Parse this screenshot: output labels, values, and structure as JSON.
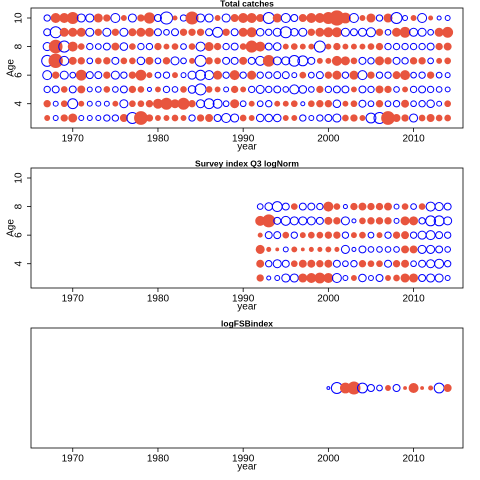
{
  "chart_data": [
    {
      "type": "bubble",
      "title": "Total catches",
      "xlabel": "year",
      "ylabel": "Age",
      "x": [
        1967,
        1968,
        1969,
        1970,
        1971,
        1972,
        1973,
        1974,
        1975,
        1976,
        1977,
        1978,
        1979,
        1980,
        1981,
        1982,
        1983,
        1984,
        1985,
        1986,
        1987,
        1988,
        1989,
        1990,
        1991,
        1992,
        1993,
        1994,
        1995,
        1996,
        1997,
        1998,
        1999,
        2000,
        2001,
        2002,
        2003,
        2004,
        2005,
        2006,
        2007,
        2008,
        2009,
        2010,
        2011,
        2012,
        2013,
        2014
      ],
      "y": [
        10,
        9,
        8,
        7,
        6,
        5,
        4,
        3
      ],
      "values": [
        [
          -0.5,
          1,
          1,
          1.5,
          -0.8,
          -0.8,
          0.8,
          0.5,
          -1,
          0.3,
          -0.8,
          0.5,
          1.3,
          -0.6,
          -1.8,
          0.2,
          -0.5,
          1.8,
          -0.8,
          -0.8,
          0.3,
          -0.8,
          0.6,
          1,
          1,
          0.6,
          -1.5,
          0.8,
          -1,
          -0.6,
          0.6,
          1,
          1,
          1.5,
          2.5,
          1.2,
          -1,
          0.3,
          0.8,
          -0.5,
          0.8,
          -1.5,
          -0.3,
          0.3,
          -1,
          0.2,
          -0.2,
          -0.3
        ],
        [
          -0.6,
          -1.5,
          0.8,
          0.8,
          0.8,
          -0.8,
          0.5,
          -0.8,
          0.5,
          -0.8,
          0.6,
          0.8,
          0.8,
          -0.6,
          -0.4,
          -0.6,
          0.5,
          0.5,
          0.5,
          -0.6,
          -1.2,
          0.5,
          -0.6,
          0.8,
          1,
          -0.7,
          -0.5,
          -0.8,
          -1.5,
          -0.7,
          -0.8,
          0.5,
          0.8,
          1,
          1,
          -0.8,
          -0.6,
          -0.8,
          -1,
          0.5,
          -0.4,
          0.8,
          1.2,
          -0.8,
          -0.8,
          -0.4,
          0.8,
          1.2
        ],
        [
          -0.8,
          2,
          -1.5,
          1,
          0.4,
          -0.5,
          -0.4,
          -0.6,
          0.6,
          -0.7,
          0.4,
          -0.5,
          -0.5,
          0.5,
          0.3,
          0.4,
          -0.4,
          0.4,
          -1,
          0.8,
          0.5,
          -0.5,
          -0.6,
          0.4,
          1.5,
          1,
          -0.6,
          -0.7,
          0.3,
          0.4,
          0.3,
          0.3,
          -1.5,
          0.3,
          0.5,
          0.3,
          0.3,
          0.3,
          0.4,
          0.5,
          -0.5,
          -0.5,
          -0.5,
          -0.5,
          -0.5,
          -0.6,
          0.5,
          0.6
        ],
        [
          -1.5,
          2.2,
          -1,
          0.6,
          0.5,
          -0.4,
          0.4,
          0.5,
          -0.6,
          0.4,
          0.4,
          -0.7,
          0.6,
          -0.4,
          0.5,
          -0.8,
          -0.4,
          0.3,
          -1.5,
          0.5,
          0.4,
          -0.6,
          -0.6,
          0.6,
          -0.6,
          -1,
          1.4,
          -0.8,
          -0.8,
          -1.4,
          -1.2,
          -0.6,
          0.3,
          0.3,
          1,
          0.8,
          0.4,
          -0.6,
          -0.5,
          0.8,
          0.5,
          -0.6,
          -0.5,
          0.5,
          0.5,
          -0.4,
          0.3,
          0.4
        ],
        [
          -1,
          0.5,
          -0.8,
          -0.4,
          1.2,
          -0.6,
          -0.6,
          0.5,
          -0.8,
          -0.5,
          0.5,
          1.2,
          0.3,
          -0.4,
          -0.5,
          0.3,
          -0.3,
          -0.8,
          -1.2,
          -1,
          0.8,
          -0.5,
          1,
          -0.5,
          0.8,
          -0.5,
          -0.5,
          -0.6,
          -0.6,
          -0.3,
          0.4,
          -0.4,
          -0.6,
          0.5,
          0.8,
          -0.5,
          0.8,
          -1,
          0.5,
          -0.5,
          -0.5,
          0.6,
          1,
          -0.4,
          -0.5,
          0.5,
          -0.4,
          -0.3
        ],
        [
          -0.5,
          -0.6,
          0.4,
          -0.6,
          0.6,
          -0.3,
          -0.4,
          0.4,
          -0.4,
          -0.6,
          0.5,
          0.4,
          -0.2,
          0.3,
          -0.5,
          -0.4,
          0.4,
          -0.7,
          -1.5,
          0.4,
          0.3,
          -0.3,
          0.5,
          0.3,
          -0.5,
          -0.8,
          -0.5,
          -0.6,
          -0.4,
          -1,
          -0.7,
          -0.4,
          0.5,
          -0.5,
          -0.6,
          -0.6,
          0.3,
          -0.6,
          -0.5,
          0.6,
          0.5,
          -0.4,
          0.3,
          -0.5,
          -0.6,
          -0.5,
          -0.4,
          -0.3
        ],
        [
          0.5,
          -0.3,
          0.4,
          -1.2,
          0.3,
          -0.3,
          -0.3,
          -0.3,
          0.3,
          -0.8,
          0.4,
          0.4,
          0.5,
          1,
          1.5,
          0.8,
          1.5,
          0.5,
          -0.8,
          -1.2,
          -1,
          -0.4,
          0.8,
          -0.4,
          0.3,
          -0.4,
          -0.5,
          0.3,
          0.3,
          0.4,
          -0.2,
          0.4,
          0.5,
          0.5,
          -0.7,
          0.3,
          0.4,
          -0.6,
          -0.4,
          0.5,
          -0.4,
          -0.5,
          0.6,
          -0.4,
          -0.5,
          -0.7,
          -0.3,
          0.4
        ],
        [
          0.3,
          -0.3,
          0.5,
          0.8,
          -0.3,
          -0.3,
          -0.3,
          -0.5,
          -0.5,
          0.6,
          -1.5,
          2,
          0.5,
          0.3,
          0.3,
          0.4,
          0.3,
          -0.5,
          0.5,
          0.6,
          -0.6,
          -1,
          -0.8,
          0.4,
          0.3,
          -0.7,
          -0.7,
          -0.7,
          0.3,
          0.3,
          -0.5,
          -0.3,
          -0.5,
          -0.6,
          -0.8,
          0.4,
          0.5,
          0.3,
          -1.2,
          -1.5,
          2,
          0.6,
          0.5,
          -0.8,
          0.4,
          0.6,
          0.4,
          0.4
        ]
      ],
      "xlim": [
        1965.1,
        2015.8
      ],
      "xticks": [
        1970,
        1980,
        1990,
        2000,
        2010
      ],
      "ylim": [
        2.3,
        10.7
      ],
      "yticks": [
        4,
        6,
        8,
        10
      ],
      "pos_color": "#e8553e",
      "neg_color": "#0000ff"
    },
    {
      "type": "bubble",
      "title": "Survey index Q3 logNorm",
      "xlabel": "year",
      "ylabel": "Age",
      "x": [
        1992,
        1993,
        1994,
        1995,
        1996,
        1997,
        1998,
        1999,
        2000,
        2001,
        2002,
        2003,
        2004,
        2005,
        2006,
        2007,
        2008,
        2009,
        2010,
        2011,
        2012,
        2013,
        2014
      ],
      "y": [
        8,
        7,
        6,
        5,
        4,
        3
      ],
      "values": [
        [
          -0.4,
          -0.7,
          -1.2,
          -0.6,
          0.4,
          -0.6,
          -0.6,
          -0.5,
          1,
          0.4,
          -0.2,
          0.5,
          0.6,
          0.5,
          0.5,
          0.6,
          -0.3,
          0.4,
          -0.4,
          0.4,
          -1,
          -0.8,
          -0.6
        ],
        [
          1,
          1.8,
          -0.6,
          -1,
          -0.8,
          -0.8,
          -0.8,
          -0.6,
          0.6,
          0.5,
          -0.8,
          -0.2,
          0.4,
          0.5,
          0.5,
          0.5,
          -0.3,
          0.8,
          0.8,
          -0.5,
          -1.2,
          -1.2,
          -0.8
        ],
        [
          0.2,
          -0.6,
          -0.6,
          0.4,
          -0.5,
          0.3,
          0.4,
          0.4,
          0.5,
          0.5,
          -0.5,
          0.3,
          0.4,
          -0.4,
          0.3,
          -0.5,
          0.5,
          0.6,
          -0.5,
          -0.8,
          -1,
          -0.6,
          -0.5
        ],
        [
          0.8,
          0.2,
          0.1,
          -0.3,
          0.3,
          0.1,
          0.2,
          0.2,
          0.3,
          0.2,
          -0.8,
          -0.2,
          -0.6,
          -0.4,
          -0.4,
          -0.4,
          -0.4,
          0.6,
          0.6,
          -0.8,
          -0.8,
          -0.6,
          -0.4
        ],
        [
          0.6,
          -0.5,
          -0.8,
          -0.6,
          0.4,
          0.6,
          0.6,
          0.5,
          0.6,
          -0.6,
          -0.4,
          -0.5,
          0.5,
          0.4,
          0.4,
          -0.6,
          0.5,
          0.6,
          -0.4,
          -0.6,
          -0.8,
          -1,
          -0.5
        ],
        [
          0.5,
          -0.2,
          -0.3,
          -0.8,
          -0.8,
          0.8,
          1,
          1.2,
          1,
          -1,
          -0.3,
          0.3,
          -0.7,
          -0.3,
          -0.6,
          0.3,
          0.4,
          0.8,
          0.8,
          -0.6,
          -0.8,
          -0.8,
          -0.3
        ]
      ],
      "xlim": [
        1965.1,
        2015.8
      ],
      "xticks": [
        1970,
        1980,
        1990,
        2000,
        2010
      ],
      "ylim": [
        2.3,
        10.7
      ],
      "yticks": [
        4,
        6,
        8,
        10
      ],
      "pos_color": "#e8553e",
      "neg_color": "#0000ff"
    },
    {
      "type": "bubble-row",
      "title": "logFSBindex",
      "xlabel": "year",
      "x": [
        2000,
        2001,
        2002,
        2003,
        2004,
        2005,
        2006,
        2007,
        2008,
        2009,
        2010,
        2011,
        2012,
        2013,
        2014
      ],
      "values": [
        -0.1,
        -1.5,
        1.2,
        1.8,
        -1.2,
        -0.6,
        -0.4,
        0.3,
        -0.6,
        0.1,
        1,
        0.1,
        0.2,
        -1.2,
        0.6
      ],
      "xlim": [
        1965.1,
        2015.8
      ],
      "xticks": [
        1970,
        1980,
        1990,
        2000,
        2010
      ],
      "pos_color": "#e8553e",
      "neg_color": "#0000ff"
    }
  ]
}
